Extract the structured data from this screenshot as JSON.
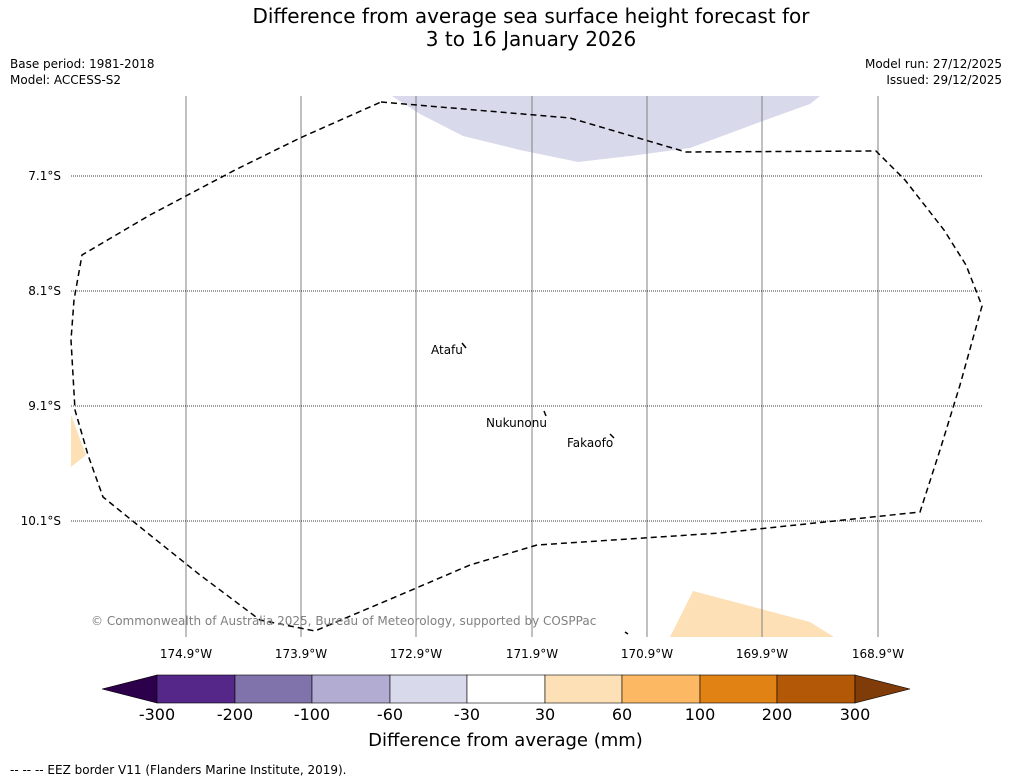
{
  "title": {
    "line1": "Difference from average sea surface height forecast for",
    "line2": "3 to 16 January 2026"
  },
  "meta": {
    "base_period": "Base period: 1981-2018",
    "model": "Model: ACCESS-S2",
    "model_run": "Model run: 27/12/2025",
    "issued": "Issued: 29/12/2025"
  },
  "map": {
    "lat_labels": [
      "7.1°S",
      "8.1°S",
      "9.1°S",
      "10.1°S"
    ],
    "lon_labels": [
      "174.9°W",
      "173.9°W",
      "172.9°W",
      "171.9°W",
      "170.9°W",
      "169.9°W",
      "168.9°W"
    ],
    "places": [
      "Atafu",
      "Nukunonu",
      "Fakaofo"
    ],
    "copyright": "© Commonwealth of Australia 2025, Bureau of Meteorology, supported by COSPPac"
  },
  "colorbar": {
    "ticks": [
      "-300",
      "-200",
      "-100",
      "-60",
      "-30",
      "30",
      "60",
      "100",
      "200",
      "300"
    ],
    "title": "Difference from average (mm)",
    "colors": {
      "lt_-300": "#2d004b",
      "-300_-200": "#542788",
      "-200_-100": "#8073ac",
      "-100_-60": "#b2abd2",
      "-60_-30": "#d8daeb",
      "-30_30": "#ffffff",
      "30_60": "#fee0b6",
      "60_100": "#fdb863",
      "100_200": "#e08214",
      "200_300": "#b35806",
      "gt_300": "#7f3b08"
    }
  },
  "legend_note": "--  --  -- EEZ border V11 (Flanders Marine Institute, 2019)."
}
